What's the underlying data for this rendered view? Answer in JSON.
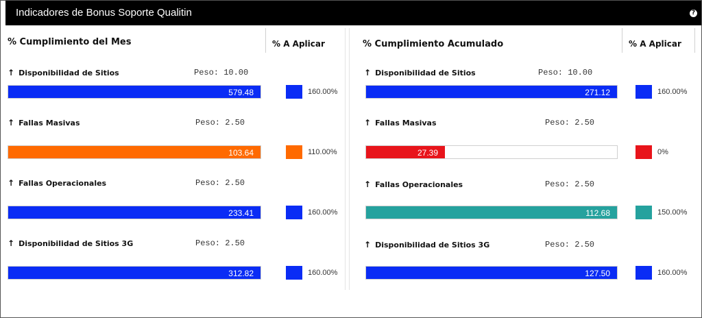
{
  "header": {
    "title": "Indicadores de Bonus Soporte Qualitin",
    "help_icon": "help-icon"
  },
  "left": {
    "title": "% Cumplimiento del Mes",
    "apply_label": "% A Aplicar",
    "items": [
      {
        "name": "Disponibilidad de Sitios",
        "peso": "Peso: 10.00",
        "value": "579.48",
        "fill_fraction": 1.0,
        "color": "#0a2cf5",
        "apply": "160.00%"
      },
      {
        "name": "Fallas Masivas",
        "peso": "Peso: 2.50",
        "value": "103.64",
        "fill_fraction": 1.0,
        "color": "#ff6a00",
        "apply": "110.00%"
      },
      {
        "name": "Fallas Operacionales",
        "peso": "Peso: 2.50",
        "value": "233.41",
        "fill_fraction": 1.0,
        "color": "#0a2cf5",
        "apply": "160.00%"
      },
      {
        "name": "Disponibilidad de Sitios 3G",
        "peso": "Peso: 2.50",
        "value": "312.82",
        "fill_fraction": 1.0,
        "color": "#0a2cf5",
        "apply": "160.00%"
      }
    ]
  },
  "right": {
    "title": "% Cumplimiento Acumulado",
    "apply_label": "% A Aplicar",
    "items": [
      {
        "name": "Disponibilidad de Sitios",
        "peso": "Peso: 10.00",
        "value": "271.12",
        "fill_fraction": 1.0,
        "color": "#0a2cf5",
        "apply": "160.00%"
      },
      {
        "name": "Fallas Masivas",
        "peso": "Peso: 2.50",
        "value": "27.39",
        "fill_fraction": 0.315,
        "color": "#e8141b",
        "apply": "0%"
      },
      {
        "name": "Fallas Operacionales",
        "peso": "Peso: 2.50",
        "value": "112.68",
        "fill_fraction": 1.0,
        "color": "#25a29e",
        "apply": "150.00%"
      },
      {
        "name": "Disponibilidad de Sitios 3G",
        "peso": "Peso: 2.50",
        "value": "127.50",
        "fill_fraction": 1.0,
        "color": "#0a2cf5",
        "apply": "160.00%"
      }
    ]
  }
}
